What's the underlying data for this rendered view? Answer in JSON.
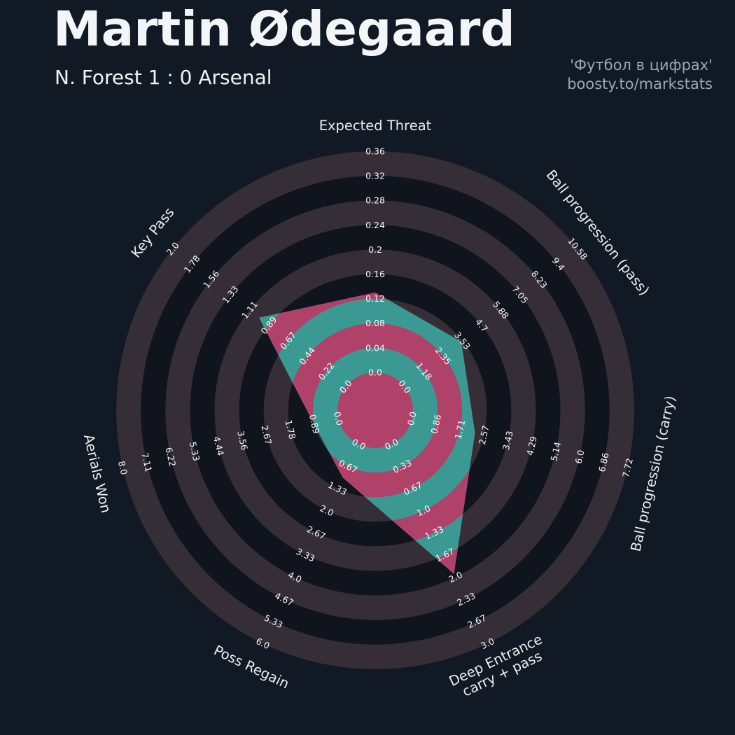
{
  "header": {
    "title": "Martin Ødegaard",
    "subtitle": "N. Forest 1 : 0 Arsenal",
    "watermark_line1": "'Футбол в цифрах'",
    "watermark_line2": "boosty.to/markstats"
  },
  "chart_data": {
    "type": "radar",
    "title": "Martin Ødegaard",
    "subtitle": "N. Forest 1 : 0 Arsenal",
    "num_rings": 9,
    "ring_min": 0,
    "legend_position": "none",
    "grid": "concentric-rings",
    "axes": [
      {
        "label": "Expected Threat",
        "max": 0.36,
        "value": 0.13,
        "ticks": [
          "0.0",
          "0.04",
          "0.08",
          "0.12",
          "0.16",
          "0.2",
          "0.24",
          "0.28",
          "0.32",
          "0.36"
        ]
      },
      {
        "label": "Ball progression (pass)",
        "max": 10.58,
        "value": 3.45,
        "ticks": [
          "0.0",
          "1.18",
          "2.35",
          "3.53",
          "4.7",
          "5.88",
          "7.05",
          "8.23",
          "9.4",
          "10.58"
        ]
      },
      {
        "label": "Ball progression (carry)",
        "max": 7.72,
        "value": 2.25,
        "ticks": [
          "0.0",
          "0.86",
          "1.71",
          "2.57",
          "3.43",
          "4.29",
          "5.14",
          "6.0",
          "6.86",
          "7.72"
        ]
      },
      {
        "label": [
          "Deep Entrance",
          "carry + pass"
        ],
        "max": 3.0,
        "value": 1.95,
        "ticks": [
          "0.0",
          "0.33",
          "0.67",
          "1.0",
          "1.33",
          "1.67",
          "2.0",
          "2.33",
          "2.67",
          "3.0"
        ]
      },
      {
        "label": "Poss Regain",
        "max": 6.0,
        "value": 1.0,
        "ticks": [
          "0.0",
          "0.67",
          "1.33",
          "2.0",
          "2.67",
          "3.33",
          "4.0",
          "4.67",
          "5.33",
          "6.0"
        ]
      },
      {
        "label": "Aerials Won",
        "max": 8.0,
        "value": 0.9,
        "ticks": [
          "0.0",
          "0.89",
          "1.78",
          "2.67",
          "3.56",
          "4.44",
          "5.33",
          "6.22",
          "7.11",
          "8.0"
        ]
      },
      {
        "label": "Key Pass",
        "max": 2.0,
        "value": 1.0,
        "ticks": [
          "0.0",
          "0.22",
          "0.44",
          "0.67",
          "0.89",
          "1.11",
          "1.33",
          "1.56",
          "1.78",
          "2.0"
        ]
      }
    ],
    "colors": {
      "background": "#111a24",
      "ring_dark": "#0f141d",
      "ring_light": "#362e37",
      "fill_teal": "#3a9a93",
      "fill_crimson": "#b04168",
      "tick_text": "#f7f8f8",
      "axis_text": "#eceeef",
      "title_text": "#f3f5f6",
      "watermark_text": "#9da5ad"
    }
  }
}
